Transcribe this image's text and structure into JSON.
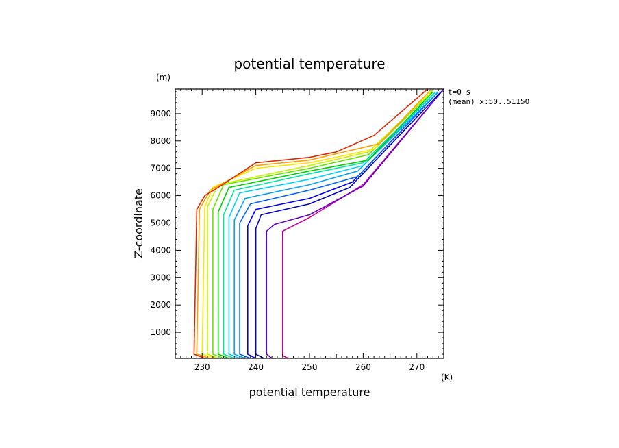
{
  "chart_data": {
    "type": "line",
    "title": "potential temperature",
    "xlabel": "potential temperature",
    "ylabel": "Z-coordinate",
    "x_unit": "(K)",
    "y_unit": "(m)",
    "annotation_time": "t=0 s",
    "annotation_mean": "(mean) x:50..51150",
    "xlim": [
      225,
      275
    ],
    "ylim": [
      50,
      9900
    ],
    "xticks": [
      230,
      240,
      250,
      260,
      270
    ],
    "yticks": [
      1000,
      2000,
      3000,
      4000,
      5000,
      6000,
      7000,
      8000,
      9000
    ],
    "grid": false,
    "series": [
      {
        "color": "#c800a0",
        "points": [
          [
            246,
            50
          ],
          [
            245,
            150
          ],
          [
            245,
            4700
          ],
          [
            250,
            5200
          ],
          [
            260,
            6400
          ],
          [
            275,
            9900
          ]
        ]
      },
      {
        "color": "#6400c0",
        "points": [
          [
            243,
            50
          ],
          [
            242,
            200
          ],
          [
            242,
            4700
          ],
          [
            243.5,
            4950
          ],
          [
            250,
            5300
          ],
          [
            260,
            6350
          ],
          [
            275,
            9900
          ]
        ]
      },
      {
        "color": "#0000c8",
        "points": [
          [
            241.5,
            50
          ],
          [
            240,
            200
          ],
          [
            240,
            4800
          ],
          [
            241,
            5300
          ],
          [
            250,
            5700
          ],
          [
            257.5,
            6300
          ],
          [
            274.5,
            9800
          ]
        ]
      },
      {
        "color": "#0000ff",
        "points": [
          [
            240,
            50
          ],
          [
            238.5,
            200
          ],
          [
            238.5,
            4900
          ],
          [
            240,
            5500
          ],
          [
            250,
            5900
          ],
          [
            258,
            6500
          ],
          [
            274,
            9800
          ]
        ]
      },
      {
        "color": "#0064ff",
        "points": [
          [
            239,
            50
          ],
          [
            237,
            200
          ],
          [
            237,
            5000
          ],
          [
            239,
            5700
          ],
          [
            250,
            6200
          ],
          [
            259,
            6700
          ],
          [
            274,
            9800
          ]
        ]
      },
      {
        "color": "#00a0ff",
        "points": [
          [
            238,
            50
          ],
          [
            236,
            200
          ],
          [
            236,
            5100
          ],
          [
            238,
            5900
          ],
          [
            250,
            6400
          ],
          [
            259,
            6900
          ],
          [
            274,
            9800
          ]
        ]
      },
      {
        "color": "#00d2ff",
        "points": [
          [
            237,
            50
          ],
          [
            235,
            200
          ],
          [
            235,
            5200
          ],
          [
            237,
            6100
          ],
          [
            250,
            6600
          ],
          [
            260,
            7100
          ],
          [
            273.5,
            9800
          ]
        ]
      },
      {
        "color": "#00e8a0",
        "points": [
          [
            236,
            50
          ],
          [
            234,
            200
          ],
          [
            234,
            5300
          ],
          [
            236,
            6200
          ],
          [
            250,
            6800
          ],
          [
            260,
            7200
          ],
          [
            273.5,
            9800
          ]
        ]
      },
      {
        "color": "#00d200",
        "points": [
          [
            235,
            50
          ],
          [
            233,
            200
          ],
          [
            233,
            5400
          ],
          [
            235,
            6300
          ],
          [
            250,
            6900
          ],
          [
            261,
            7300
          ],
          [
            273,
            9800
          ]
        ]
      },
      {
        "color": "#64e600",
        "points": [
          [
            234,
            50
          ],
          [
            232,
            200
          ],
          [
            232,
            5500
          ],
          [
            234,
            6400
          ],
          [
            250,
            7000
          ],
          [
            261,
            7500
          ],
          [
            273,
            9850
          ]
        ]
      },
      {
        "color": "#c8f000",
        "points": [
          [
            233,
            50
          ],
          [
            231,
            200
          ],
          [
            231,
            5600
          ],
          [
            233,
            6400
          ],
          [
            250,
            7100
          ],
          [
            261,
            7600
          ],
          [
            273,
            9850
          ]
        ]
      },
      {
        "color": "#ffe600",
        "points": [
          [
            232.5,
            50
          ],
          [
            230,
            200
          ],
          [
            230.5,
            5600
          ],
          [
            232,
            6300
          ],
          [
            240,
            7000
          ],
          [
            250,
            7200
          ],
          [
            262,
            7700
          ],
          [
            272.5,
            9850
          ]
        ]
      },
      {
        "color": "#ffa000",
        "points": [
          [
            231.5,
            50
          ],
          [
            229,
            200
          ],
          [
            229.5,
            5500
          ],
          [
            231.5,
            6200
          ],
          [
            240,
            7100
          ],
          [
            250,
            7300
          ],
          [
            263,
            7900
          ],
          [
            272.5,
            9850
          ]
        ]
      },
      {
        "color": "#e02800",
        "points": [
          [
            230.5,
            50
          ],
          [
            228.5,
            200
          ],
          [
            229,
            5500
          ],
          [
            230.5,
            6000
          ],
          [
            233,
            6300
          ],
          [
            240,
            7200
          ],
          [
            250,
            7400
          ],
          [
            255,
            7600
          ],
          [
            262,
            8200
          ],
          [
            272,
            9900
          ]
        ]
      }
    ]
  }
}
